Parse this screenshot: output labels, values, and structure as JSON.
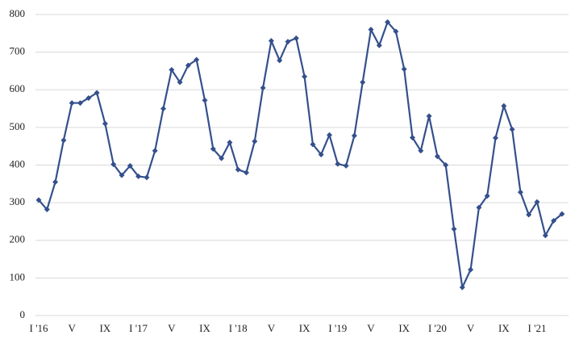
{
  "chart_data": {
    "type": "line",
    "categories": [
      "I '16",
      null,
      null,
      null,
      "V",
      null,
      null,
      null,
      "IX",
      null,
      null,
      null,
      "I '17",
      null,
      null,
      null,
      "V",
      null,
      null,
      null,
      "IX",
      null,
      null,
      null,
      "I '18",
      null,
      null,
      null,
      "V",
      null,
      null,
      null,
      "IX",
      null,
      null,
      null,
      "I '19",
      null,
      null,
      null,
      "V",
      null,
      null,
      null,
      "IX",
      null,
      null,
      null,
      "I '20",
      null,
      null,
      null,
      "V",
      null,
      null,
      null,
      "IX",
      null,
      null,
      null,
      "I '21",
      null,
      null,
      null
    ],
    "series": [
      {
        "color": "#34508c",
        "values": [
          307,
          282,
          355,
          466,
          565,
          565,
          578,
          592,
          510,
          402,
          373,
          398,
          370,
          367,
          438,
          550,
          653,
          620,
          665,
          680,
          572,
          443,
          418,
          460,
          388,
          380,
          463,
          605,
          730,
          678,
          728,
          737,
          635,
          455,
          428,
          480,
          403,
          398,
          478,
          620,
          760,
          718,
          780,
          755,
          655,
          473,
          438,
          530,
          423,
          400,
          230,
          75,
          122,
          287,
          318,
          472,
          557,
          495,
          328,
          268,
          302,
          213,
          252,
          270
        ]
      }
    ],
    "ylim": [
      0,
      800
    ],
    "yticks": [
      0,
      100,
      200,
      300,
      400,
      500,
      600,
      700,
      800
    ],
    "grid": true
  }
}
